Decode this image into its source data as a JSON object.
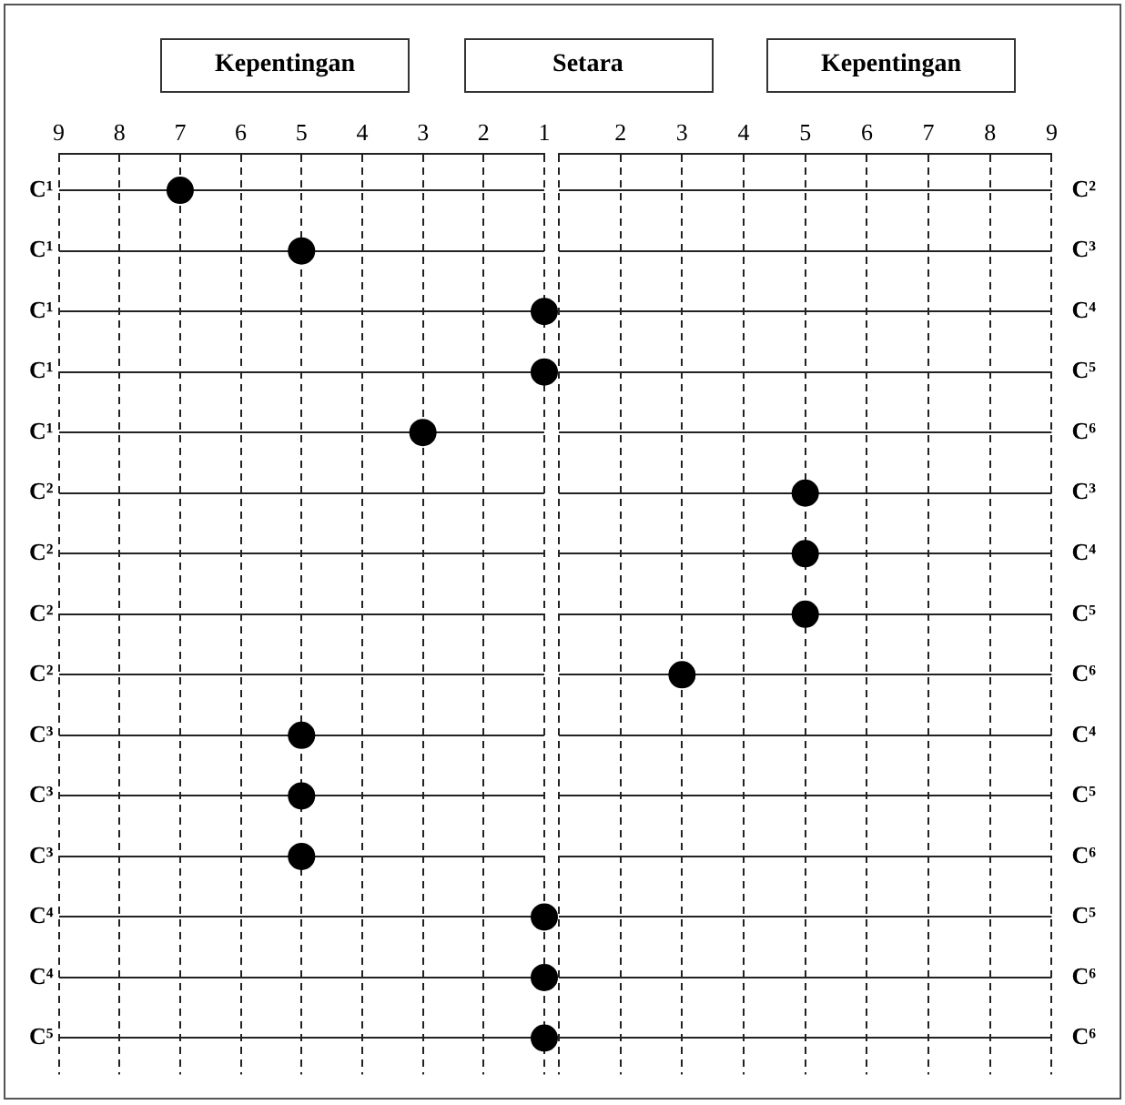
{
  "chart_data": [
    {
      "type": "scatter",
      "orientation": "horizontal",
      "marker": "circle",
      "grid": true,
      "annotations": [
        "Kepentingan",
        "Setara"
      ],
      "categories": [
        "C¹",
        "C¹",
        "C¹",
        "C¹",
        "C¹",
        "C²",
        "C²",
        "C²",
        "C²",
        "C³",
        "C³",
        "C³",
        "C⁴",
        "C⁴",
        "C⁵"
      ],
      "xlim": [
        9,
        1
      ],
      "xticks": [
        9,
        8,
        7,
        6,
        5,
        4,
        3,
        2,
        1
      ],
      "series": [
        {
          "color": "#000000",
          "values": [
            7,
            5,
            1,
            1,
            3,
            null,
            null,
            null,
            null,
            5,
            5,
            5,
            1,
            1,
            1
          ]
        }
      ]
    },
    {
      "type": "scatter",
      "orientation": "horizontal",
      "marker": "circle",
      "grid": true,
      "annotations": [
        "Kepentingan"
      ],
      "categories": [
        null,
        null,
        null,
        null,
        null,
        null,
        null,
        null,
        null,
        null,
        null,
        null,
        null,
        null,
        null
      ],
      "y2_categories": [
        "C²",
        "C³",
        "C⁴",
        "C⁵",
        "C⁶",
        "C³",
        "C⁴",
        "C⁵",
        "C⁶",
        "C⁴",
        "C⁵",
        "C⁶",
        "C⁵",
        "C⁶",
        "C⁶"
      ],
      "xlim": [
        1,
        9
      ],
      "xticks": [
        {
          "value": 1,
          "label": null
        },
        2,
        3,
        4,
        5,
        6,
        7,
        8,
        9
      ],
      "series": [
        {
          "color": "#000000",
          "values": [
            null,
            null,
            null,
            null,
            null,
            5,
            5,
            5,
            3,
            null,
            null,
            null,
            null,
            null,
            null
          ]
        }
      ]
    }
  ]
}
